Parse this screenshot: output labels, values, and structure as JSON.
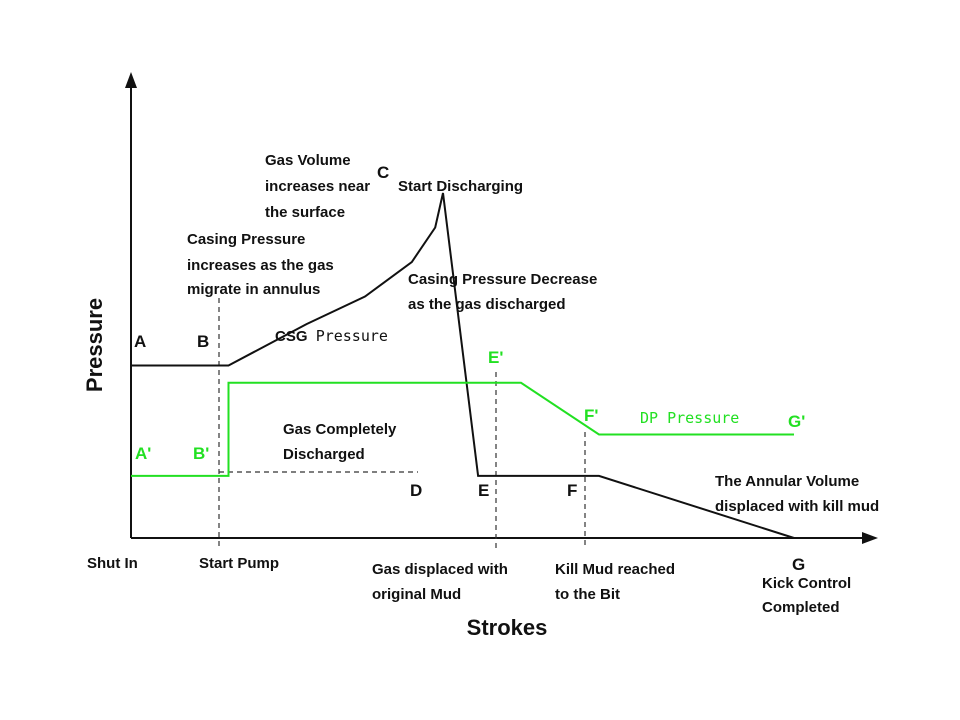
{
  "chart_data": {
    "type": "line",
    "title": "",
    "xlabel": "Strokes",
    "ylabel": "Pressure",
    "grid": false,
    "colors": {
      "casing": "#111111",
      "dp": "#22e022",
      "guide": "#333333"
    },
    "stages": {
      "shut_in": "Shut In",
      "start_pump": "Start Pump",
      "gas_displaced": [
        "Gas displaced with",
        "original Mud"
      ],
      "kill_mud": [
        "Kill Mud reached",
        "to the Bit"
      ],
      "kick_control": [
        "Kick Control",
        "Completed"
      ]
    },
    "series": [
      {
        "name": "CSG Pressure",
        "color": "#111111",
        "points": [
          {
            "label": "A",
            "x": 0,
            "y": 5.0
          },
          {
            "label": "B",
            "x": 2.5,
            "y": 5.0
          },
          {
            "label": "",
            "x": 4.5,
            "y": 6.2
          },
          {
            "label": "",
            "x": 6.0,
            "y": 7.0
          },
          {
            "label": "",
            "x": 7.2,
            "y": 8.0
          },
          {
            "label": "",
            "x": 7.8,
            "y": 9.0
          },
          {
            "label": "C",
            "x": 8.0,
            "y": 10.0
          },
          {
            "label": "D",
            "x": 8.9,
            "y": 1.8
          },
          {
            "label": "E",
            "x": 10.0,
            "y": 1.8
          },
          {
            "label": "F",
            "x": 12.0,
            "y": 1.8
          },
          {
            "label": "G",
            "x": 17.0,
            "y": 0
          }
        ]
      },
      {
        "name": "DP Pressure",
        "color": "#22e022",
        "points": [
          {
            "label": "A'",
            "x": 0,
            "y": 1.8
          },
          {
            "label": "B'",
            "x": 2.5,
            "y": 1.8
          },
          {
            "label": "",
            "x": 2.5,
            "y": 4.5
          },
          {
            "label": "E'",
            "x": 10.0,
            "y": 4.5
          },
          {
            "label": "F'",
            "x": 12.0,
            "y": 3.0
          },
          {
            "label": "G'",
            "x": 17.0,
            "y": 3.0
          }
        ]
      }
    ],
    "annotations": {
      "gas_volume": [
        "Gas Volume",
        "increases near",
        "the surface"
      ],
      "start_discharging": "Start Discharging",
      "casing_increase": [
        "Casing Pressure",
        "increases as the gas",
        "migrate in annulus"
      ],
      "casing_decrease": [
        "Casing Pressure Decrease",
        "as the gas discharged"
      ],
      "csg_prefix": "CSG",
      "csg_suffix": "Pressure",
      "dp_label": "DP Pressure",
      "gas_completely": [
        "Gas Completely",
        "Discharged"
      ],
      "annular_volume": [
        "The Annular Volume",
        "displaced with kill mud"
      ]
    }
  }
}
